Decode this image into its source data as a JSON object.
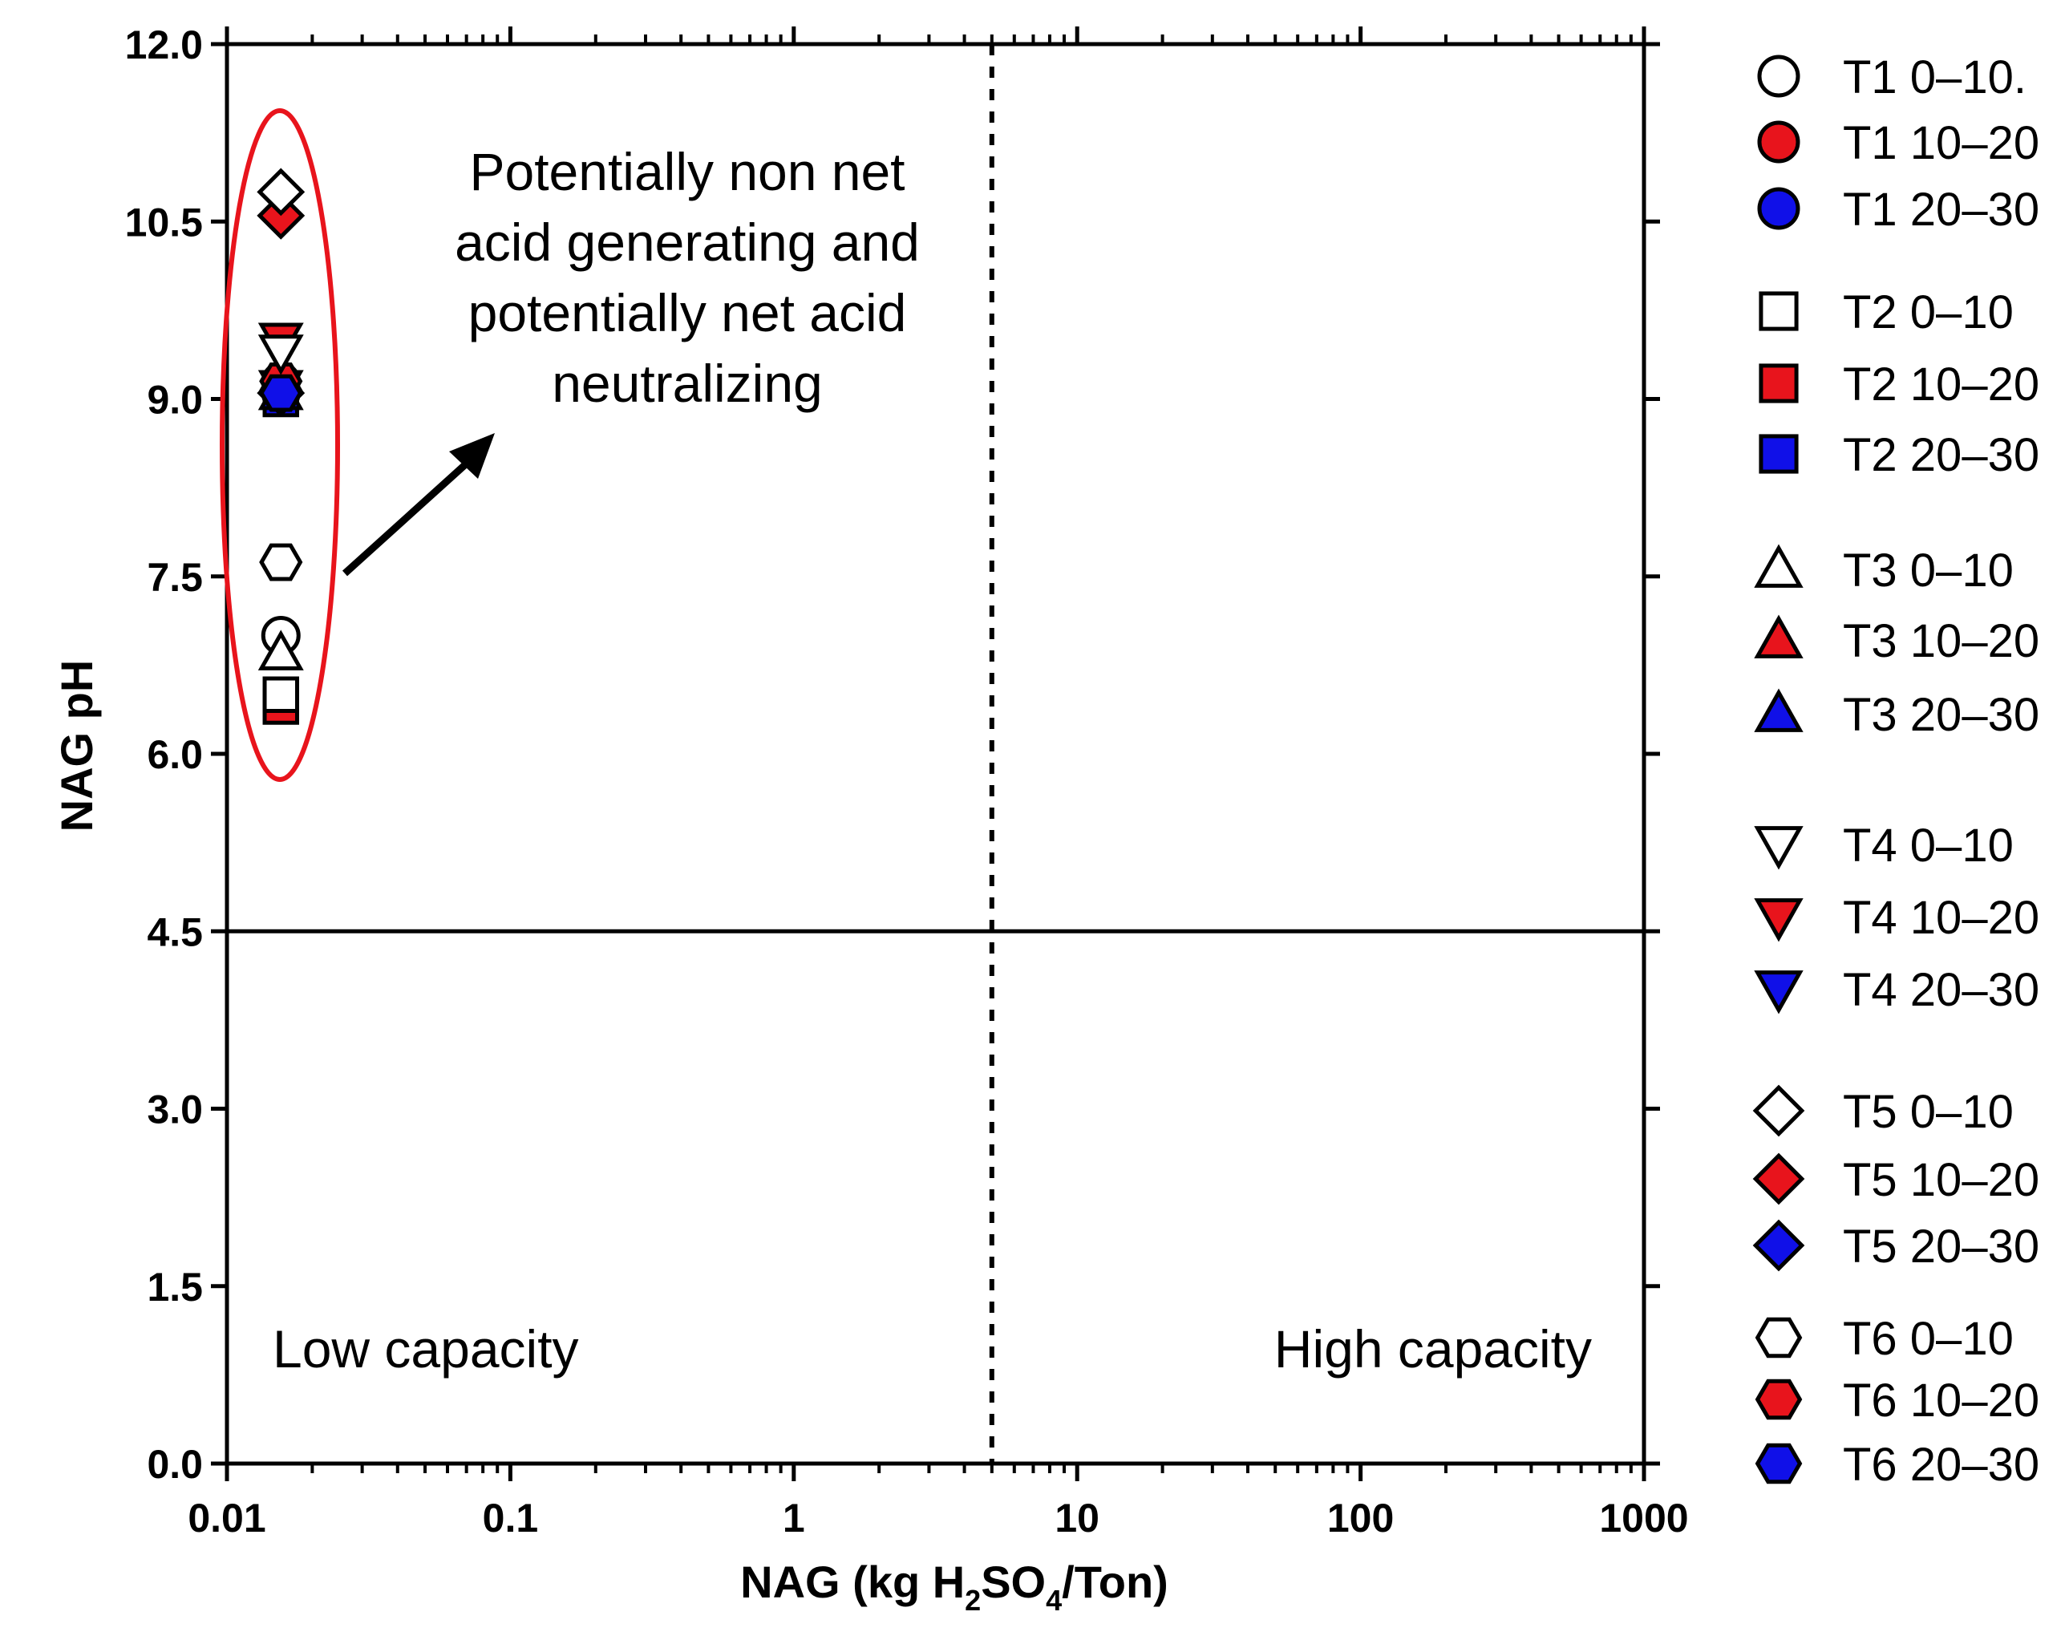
{
  "chart_data": {
    "type": "scatter",
    "x_scale": "log",
    "xlim": [
      0.01,
      1000
    ],
    "ylim": [
      0.0,
      12.0
    ],
    "x_ticks": [
      "0.01",
      "0.1",
      "1",
      "10",
      "100",
      "1000"
    ],
    "y_ticks": [
      "0.0",
      "1.5",
      "3.0",
      "4.5",
      "6.0",
      "7.5",
      "9.0",
      "10.5",
      "12.0"
    ],
    "xlabel": {
      "prefix": "NAG (kg H",
      "sub1": "2",
      "mid": "SO",
      "sub2": "4",
      "suffix": "/Ton)"
    },
    "ylabel": "NAG pH",
    "reference_lines": {
      "horizontal_y": 4.5,
      "vertical_x": 5
    },
    "annotations": {
      "upper_left_lines": [
        "Potentially non net",
        "acid generating and",
        "potentially net acid",
        "neutralizing"
      ],
      "lower_left": "Low capacity",
      "lower_right": "High capacity"
    },
    "colors": {
      "white": "#ffffff",
      "red": "#e8141c",
      "blue": "#1010e8",
      "outline": "#000000",
      "ellipse": "#e8141c"
    },
    "series": [
      {
        "name": "T1 0–10.",
        "shape": "circle",
        "color": "white",
        "x": 0.0155,
        "y": 7.0
      },
      {
        "name": "T1 10–20",
        "shape": "circle",
        "color": "red",
        "x": 0.0155,
        "y": 9.15
      },
      {
        "name": "T1 20–30",
        "shape": "circle",
        "color": "blue",
        "x": 0.0155,
        "y": 9.05
      },
      {
        "name": "T2 0–10",
        "shape": "square",
        "color": "white",
        "x": 0.0155,
        "y": 6.5
      },
      {
        "name": "T2 10–20",
        "shape": "square",
        "color": "red",
        "x": 0.0155,
        "y": 6.4
      },
      {
        "name": "T2 20–30",
        "shape": "square",
        "color": "blue",
        "x": 0.0155,
        "y": 9.0
      },
      {
        "name": "T3 0–10",
        "shape": "triangle-up",
        "color": "white",
        "x": 0.0155,
        "y": 6.85
      },
      {
        "name": "T3 10–20",
        "shape": "triangle-up",
        "color": "red",
        "x": 0.0155,
        "y": 9.2
      },
      {
        "name": "T3 20–30",
        "shape": "triangle-up",
        "color": "blue",
        "x": 0.0155,
        "y": 9.05
      },
      {
        "name": "T4 0–10",
        "shape": "triangle-down",
        "color": "white",
        "x": 0.0155,
        "y": 9.4
      },
      {
        "name": "T4 10–20",
        "shape": "triangle-down",
        "color": "red",
        "x": 0.0155,
        "y": 9.5
      },
      {
        "name": "T4 20–30",
        "shape": "triangle-down",
        "color": "blue",
        "x": 0.0155,
        "y": 9.1
      },
      {
        "name": "T5 0–10",
        "shape": "diamond",
        "color": "white",
        "x": 0.0155,
        "y": 10.75
      },
      {
        "name": "T5 10–20",
        "shape": "diamond",
        "color": "red",
        "x": 0.0155,
        "y": 10.55
      },
      {
        "name": "T5 20–30",
        "shape": "diamond",
        "color": "blue",
        "x": 0.0155,
        "y": 9.05
      },
      {
        "name": "T6 0–10",
        "shape": "hexagon",
        "color": "white",
        "x": 0.0155,
        "y": 7.62
      },
      {
        "name": "T6 10–20",
        "shape": "hexagon",
        "color": "red",
        "x": 0.0155,
        "y": 9.15
      },
      {
        "name": "T6 20–30",
        "shape": "hexagon",
        "color": "blue",
        "x": 0.0155,
        "y": 9.05
      }
    ]
  }
}
